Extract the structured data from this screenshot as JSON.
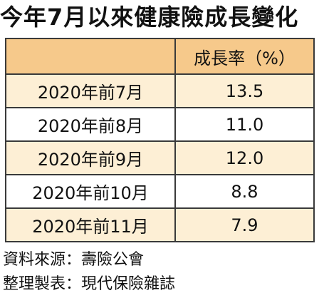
{
  "title": "今年7月以來健康險成長變化",
  "chart_data": {
    "type": "table",
    "columns": [
      "",
      "成長率（%）"
    ],
    "rows": [
      {
        "label": "2020年前7月",
        "value": "13.5"
      },
      {
        "label": "2020年前8月",
        "value": "11.0"
      },
      {
        "label": "2020年前9月",
        "value": "12.0"
      },
      {
        "label": "2020年前10月",
        "value": "8.8"
      },
      {
        "label": "2020年前11月",
        "value": "7.9"
      }
    ]
  },
  "footer": {
    "source": "資料來源：壽險公會",
    "made_by": "整理製表：現代保險雜誌"
  },
  "colors": {
    "header_bg": "#f6c98b",
    "stripe_bg": "#fdefd5",
    "border": "#3a3a3a"
  }
}
